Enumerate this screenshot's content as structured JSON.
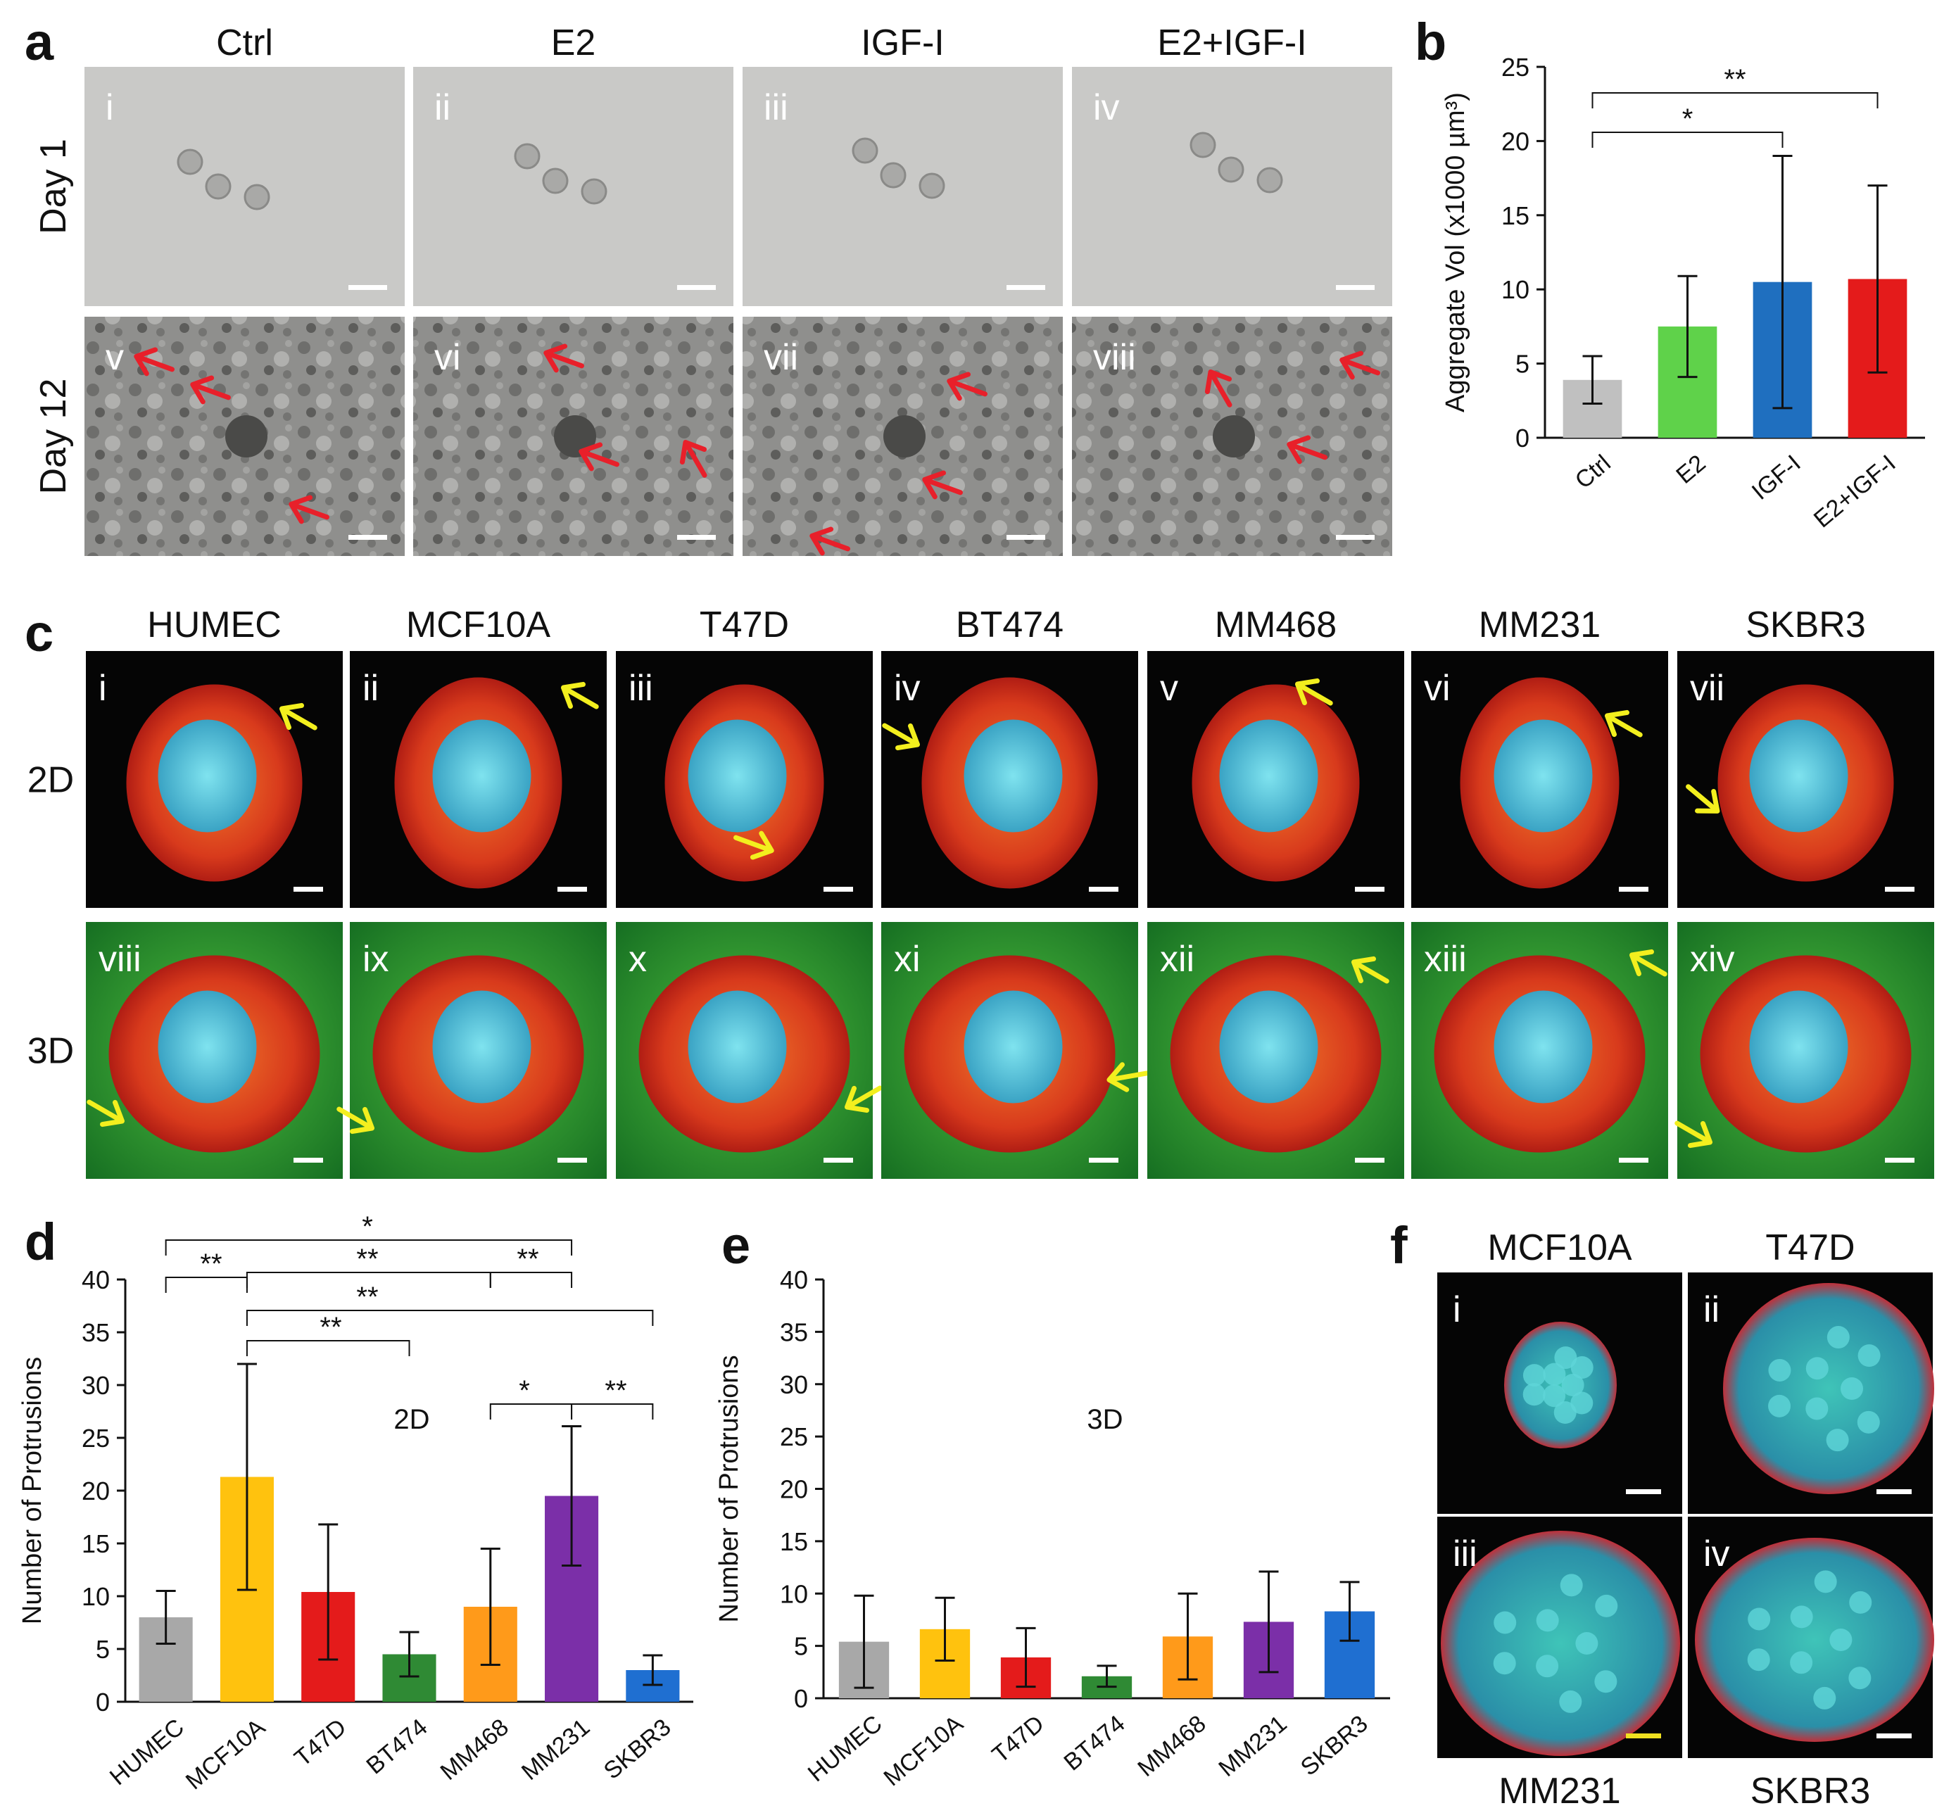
{
  "panel_labels": {
    "a": "a",
    "b": "b",
    "c": "c",
    "d": "d",
    "e": "e",
    "f": "f"
  },
  "panel_a": {
    "columns": [
      "Ctrl",
      "E2",
      "IGF-I",
      "E2+IGF-I"
    ],
    "rows": [
      "Day 1",
      "Day 12"
    ],
    "romans": [
      "i",
      "ii",
      "iii",
      "iv",
      "v",
      "vi",
      "vii",
      "viii"
    ],
    "colors": {
      "day1_bg": "#c9c9c7",
      "day12_bg": "#8e8e8c",
      "arrow": "#e8202a",
      "scalebar": "#ffffff"
    }
  },
  "panel_c": {
    "columns": [
      "HUMEC",
      "MCF10A",
      "T47D",
      "BT474",
      "MM468",
      "MM231",
      "SKBR3"
    ],
    "rows": [
      "2D",
      "3D"
    ],
    "romans_2d": [
      "i",
      "ii",
      "iii",
      "iv",
      "v",
      "vi",
      "vii"
    ],
    "romans_3d": [
      "viii",
      "ix",
      "x",
      "xi",
      "xii",
      "xiii",
      "xiv"
    ],
    "colors": {
      "bg_2d": "#050505",
      "bg_3d": "#1f8a2c",
      "cell": "#e2451f",
      "nucleus": "#4bc6d8",
      "arrow": "#f3ef1e"
    }
  },
  "panel_f": {
    "top_labels": [
      "MCF10A",
      "T47D"
    ],
    "bottom_labels": [
      "MM231",
      "SKBR3"
    ],
    "romans": [
      "i",
      "ii",
      "iii",
      "iv"
    ]
  },
  "chart_data": [
    {
      "id": "b",
      "type": "bar",
      "categories": [
        "Ctrl",
        "E2",
        "IGF-I",
        "E2+IGF-I"
      ],
      "values": [
        3.9,
        7.5,
        10.5,
        10.7
      ],
      "errors": [
        1.6,
        3.4,
        8.5,
        6.3
      ],
      "colors": [
        "#c0c0c0",
        "#5fd24a",
        "#1f6fbf",
        "#e41b1b"
      ],
      "ylabel": "Aggregate Vol (x1000 µm³)",
      "ylim": [
        0,
        25
      ],
      "yticks": [
        0,
        5,
        10,
        15,
        20,
        25
      ],
      "significance": [
        {
          "from": "Ctrl",
          "to": "IGF-I",
          "label": "*"
        },
        {
          "from": "Ctrl",
          "to": "E2+IGF-I",
          "label": "**"
        }
      ]
    },
    {
      "id": "d",
      "type": "bar",
      "title": "2D",
      "categories": [
        "HUMEC",
        "MCF10A",
        "T47D",
        "BT474",
        "MM468",
        "MM231",
        "SKBR3"
      ],
      "values": [
        8.0,
        21.3,
        10.4,
        4.5,
        9.0,
        19.5,
        3.0
      ],
      "errors": [
        2.5,
        10.7,
        6.4,
        2.1,
        5.5,
        6.6,
        1.4
      ],
      "colors": [
        "#a8a8a8",
        "#ffc20e",
        "#e41b1b",
        "#2f8a34",
        "#ff9a1a",
        "#7b2fa8",
        "#1f6fd1"
      ],
      "ylabel": "Number of Protrusions",
      "ylim": [
        0,
        40
      ],
      "yticks": [
        0,
        5,
        10,
        15,
        20,
        25,
        30,
        35,
        40
      ],
      "significance": [
        {
          "from": "HUMEC",
          "to": "MM231",
          "label": "*"
        },
        {
          "from": "HUMEC",
          "to": "MCF10A",
          "label": "**"
        },
        {
          "from": "MCF10A",
          "to": "MM468",
          "label": "**"
        },
        {
          "from": "MM468",
          "to": "MM231",
          "label": "**"
        },
        {
          "from": "MCF10A",
          "to": "SKBR3",
          "label": "**"
        },
        {
          "from": "MCF10A",
          "to": "BT474",
          "label": "**"
        },
        {
          "from": "MM468",
          "to": "MM231",
          "label": "*"
        },
        {
          "from": "MM231",
          "to": "SKBR3",
          "label": "**"
        }
      ]
    },
    {
      "id": "e",
      "type": "bar",
      "title": "3D",
      "categories": [
        "HUMEC",
        "MCF10A",
        "T47D",
        "BT474",
        "MM468",
        "MM231",
        "SKBR3"
      ],
      "values": [
        5.4,
        6.6,
        3.9,
        2.1,
        5.9,
        7.3,
        8.3
      ],
      "errors": [
        4.4,
        3.0,
        2.8,
        1.0,
        4.1,
        4.8,
        2.8
      ],
      "colors": [
        "#a8a8a8",
        "#ffc20e",
        "#e41b1b",
        "#2f8a34",
        "#ff9a1a",
        "#7b2fa8",
        "#1f6fd1"
      ],
      "ylabel": "Number of Protrusions",
      "ylim": [
        0,
        40
      ],
      "yticks": [
        0,
        5,
        10,
        15,
        20,
        25,
        30,
        35,
        40
      ]
    }
  ]
}
